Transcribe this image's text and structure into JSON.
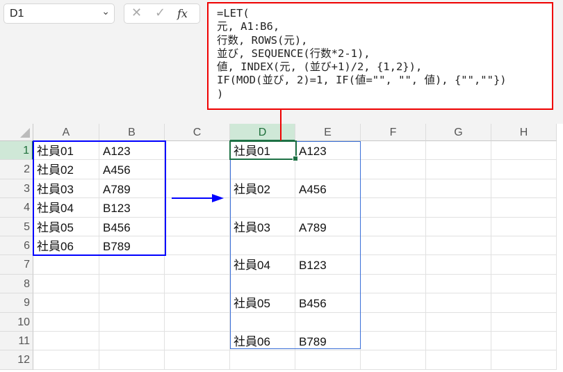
{
  "name_box": {
    "value": "D1"
  },
  "formula_bar": {
    "cancel_icon": "x-icon",
    "enter_icon": "check-icon",
    "fx_label": "fx",
    "formula": "=LET(\n元, A1:B6,\n行数, ROWS(元),\n並び, SEQUENCE(行数*2-1),\n値, INDEX(元, (並び+1)/2, {1,2}),\nIF(MOD(並び, 2)=1, IF(値=\"\", \"\", 値), {\"\",\"\"})\n)"
  },
  "columns": [
    "A",
    "B",
    "C",
    "D",
    "E",
    "F",
    "G",
    "H"
  ],
  "rows": [
    "1",
    "2",
    "3",
    "4",
    "5",
    "6",
    "7",
    "8",
    "9",
    "10",
    "11",
    "12"
  ],
  "selected": {
    "column": "D",
    "row": "1"
  },
  "cells": {
    "A1": "社員01",
    "B1": "A123",
    "A2": "社員02",
    "B2": "A456",
    "A3": "社員03",
    "B3": "A789",
    "A4": "社員04",
    "B4": "B123",
    "A5": "社員05",
    "B5": "B456",
    "A6": "社員06",
    "B6": "B789",
    "D1": "社員01",
    "E1": "A123",
    "D3": "社員02",
    "E3": "A456",
    "D5": "社員03",
    "E5": "A789",
    "D7": "社員04",
    "E7": "B123",
    "D9": "社員05",
    "E9": "B456",
    "D11": "社員06",
    "E11": "B789"
  },
  "colors": {
    "highlight_red": "#ee0000",
    "highlight_blue": "#0000ff",
    "selection_green": "#1e7145"
  }
}
